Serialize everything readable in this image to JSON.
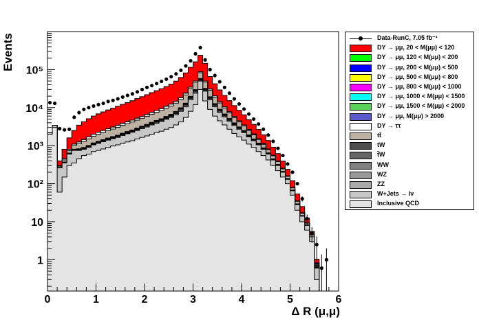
{
  "chart_data": {
    "type": "histogram",
    "xlabel": "Δ R (μ,μ)",
    "ylabel": "Events",
    "xlim": [
      0,
      6
    ],
    "ylim": [
      0.15,
      1000000
    ],
    "yscale": "log",
    "x_ticks": [
      "0",
      "1",
      "2",
      "3",
      "4",
      "5",
      "6"
    ],
    "y_ticks": [
      "1",
      "10",
      "10²",
      "10³",
      "10⁴",
      "10⁵"
    ],
    "legend_position": "right",
    "bin_width": 0.1,
    "bin_centers": [
      0.05,
      0.15,
      0.25,
      0.35,
      0.45,
      0.55,
      0.65,
      0.75,
      0.85,
      0.95,
      1.05,
      1.15,
      1.25,
      1.35,
      1.45,
      1.55,
      1.65,
      1.75,
      1.85,
      1.95,
      2.05,
      2.15,
      2.25,
      2.35,
      2.45,
      2.55,
      2.65,
      2.75,
      2.85,
      2.95,
      3.05,
      3.15,
      3.25,
      3.35,
      3.45,
      3.55,
      3.65,
      3.75,
      3.85,
      3.95,
      4.05,
      4.15,
      4.25,
      4.35,
      4.45,
      4.55,
      4.65,
      4.75,
      4.85,
      4.95,
      5.05,
      5.15,
      5.25,
      5.35,
      5.45,
      5.55,
      5.65,
      5.75
    ],
    "series": [
      {
        "name": "Inclusive QCD",
        "color": "#e4e4e4",
        "values": [
          2000,
          3000,
          60,
          150,
          300,
          350,
          450,
          550,
          600,
          700,
          750,
          820,
          900,
          980,
          1050,
          1150,
          1250,
          1350,
          1500,
          1650,
          1800,
          2000,
          2200,
          2400,
          2700,
          3000,
          3500,
          4200,
          5500,
          8000,
          12000,
          30000,
          15000,
          9000,
          6000,
          4500,
          3500,
          2700,
          2100,
          1700,
          1400,
          1100,
          900,
          700,
          550,
          420,
          300,
          220,
          150,
          100,
          50,
          20,
          10,
          6,
          3,
          0.3,
          0,
          0
        ]
      },
      {
        "name": "W+Jets → lν",
        "color": "#c8c8c8",
        "values": [
          200,
          400,
          200,
          200,
          300,
          400,
          300,
          250,
          300,
          350,
          400,
          450,
          500,
          550,
          600,
          700,
          800,
          900,
          1000,
          1150,
          1300,
          1500,
          1700,
          1900,
          2200,
          2500,
          3000,
          3800,
          5000,
          8000,
          12000,
          20000,
          12000,
          7000,
          4500,
          3000,
          2200,
          1700,
          1300,
          1000,
          800,
          600,
          450,
          350,
          250,
          180,
          120,
          80,
          50,
          30,
          15,
          8,
          4,
          2,
          1,
          0.3,
          0,
          0
        ]
      },
      {
        "name": "ZZ",
        "color": "#aaaaaa",
        "values": [
          0,
          0,
          3,
          8,
          15,
          20,
          25,
          30,
          35,
          40,
          45,
          50,
          55,
          60,
          70,
          80,
          90,
          100,
          120,
          140,
          160,
          180,
          210,
          250,
          300,
          350,
          450,
          600,
          800,
          1200,
          1800,
          2500,
          1600,
          1000,
          700,
          500,
          350,
          250,
          180,
          130,
          100,
          70,
          50,
          35,
          25,
          15,
          10,
          6,
          3,
          2,
          1,
          0.5,
          0.2,
          0.1,
          0,
          0,
          0,
          0
        ]
      },
      {
        "name": "WZ",
        "color": "#999999",
        "values": [
          0,
          0,
          2,
          5,
          10,
          15,
          20,
          25,
          30,
          35,
          40,
          45,
          50,
          55,
          60,
          70,
          80,
          90,
          100,
          120,
          140,
          160,
          180,
          210,
          250,
          300,
          380,
          500,
          700,
          1000,
          1500,
          2200,
          1400,
          900,
          600,
          420,
          300,
          210,
          150,
          110,
          80,
          60,
          40,
          30,
          20,
          12,
          8,
          5,
          3,
          2,
          1,
          0.5,
          0.2,
          0.1,
          0,
          0,
          0,
          0
        ]
      },
      {
        "name": "WW",
        "color": "#808080",
        "values": [
          0,
          0,
          1,
          3,
          6,
          10,
          14,
          18,
          22,
          26,
          30,
          34,
          38,
          42,
          48,
          55,
          62,
          70,
          80,
          95,
          110,
          125,
          145,
          170,
          200,
          240,
          300,
          400,
          550,
          800,
          1200,
          1800,
          1100,
          700,
          450,
          320,
          230,
          160,
          120,
          90,
          65,
          45,
          32,
          22,
          15,
          9,
          6,
          4,
          2,
          1,
          0.5,
          0.2,
          0.1,
          0,
          0,
          0,
          0,
          0
        ]
      },
      {
        "name": "t̄W",
        "color": "#666666",
        "values": [
          0,
          0,
          1,
          2,
          4,
          6,
          8,
          10,
          12,
          14,
          16,
          18,
          20,
          23,
          26,
          30,
          34,
          38,
          43,
          50,
          58,
          66,
          76,
          88,
          104,
          124,
          152,
          200,
          270,
          390,
          580,
          850,
          520,
          330,
          220,
          150,
          110,
          80,
          58,
          42,
          30,
          22,
          15,
          10,
          7,
          4,
          3,
          2,
          1,
          0.5,
          0.2,
          0.1,
          0,
          0,
          0,
          0,
          0,
          0
        ]
      },
      {
        "name": "tW",
        "color": "#4d4d4d",
        "values": [
          0,
          0,
          1,
          2,
          4,
          6,
          8,
          10,
          12,
          14,
          16,
          18,
          20,
          23,
          26,
          30,
          34,
          38,
          43,
          50,
          58,
          66,
          76,
          88,
          104,
          124,
          152,
          200,
          270,
          390,
          580,
          850,
          520,
          330,
          220,
          150,
          110,
          80,
          58,
          42,
          30,
          22,
          15,
          10,
          7,
          4,
          3,
          2,
          1,
          0.5,
          0.2,
          0.1,
          0,
          0,
          0,
          0,
          0,
          0
        ]
      },
      {
        "name": "tt̄",
        "color": "#bcb1a3",
        "values": [
          0,
          0,
          20,
          50,
          100,
          200,
          300,
          400,
          500,
          600,
          700,
          800,
          900,
          1000,
          1150,
          1300,
          1450,
          1600,
          1800,
          2000,
          2300,
          2600,
          2900,
          3300,
          3800,
          4400,
          5200,
          6500,
          8500,
          12000,
          17000,
          25000,
          15000,
          9500,
          6200,
          4200,
          3000,
          2100,
          1500,
          1100,
          800,
          580,
          420,
          300,
          210,
          140,
          90,
          60,
          35,
          20,
          10,
          5,
          2,
          1,
          0.5,
          0,
          0,
          0
        ]
      },
      {
        "name": "DY → ττ",
        "color": "#ffffff",
        "values": [
          0,
          0,
          10,
          30,
          60,
          90,
          120,
          150,
          180,
          210,
          240,
          270,
          300,
          330,
          370,
          410,
          450,
          500,
          560,
          630,
          700,
          790,
          890,
          1000,
          1150,
          1300,
          1500,
          1800,
          2200,
          2800,
          3500,
          4500,
          3000,
          2000,
          1400,
          1000,
          700,
          500,
          350,
          250,
          180,
          130,
          90,
          60,
          40,
          25,
          15,
          10,
          6,
          3,
          2,
          1,
          0.5,
          0.2,
          0,
          0,
          0,
          0
        ]
      },
      {
        "name": "DY → μμ, M(μμ) > 2000",
        "color": "#5a5ac8",
        "values": [
          0,
          0,
          0,
          0,
          0,
          0,
          0,
          0,
          0,
          0,
          0,
          0,
          0,
          0,
          0,
          0,
          0,
          0,
          0,
          0,
          0,
          0,
          0,
          0,
          0,
          0,
          0,
          0,
          0,
          0,
          0,
          0,
          0,
          0,
          0,
          0,
          0,
          0,
          0,
          0,
          0,
          0,
          0,
          0,
          0,
          0,
          0,
          0,
          0,
          0,
          0,
          0,
          0,
          0,
          0,
          0.03,
          0,
          0
        ]
      },
      {
        "name": "DY → μμ, 1500 < M(μμ) < 2000",
        "color": "#5ad25a",
        "values": [
          0,
          0,
          0,
          0,
          0,
          0,
          0,
          0,
          0,
          0,
          0,
          0,
          0,
          0,
          0,
          0,
          0,
          0,
          0,
          0,
          0,
          0,
          0,
          0,
          0,
          0,
          0,
          0,
          0,
          0,
          0,
          0,
          0,
          0,
          0,
          0,
          0,
          0,
          0,
          0,
          0,
          0,
          0,
          0,
          0,
          0,
          0,
          0,
          0,
          0,
          0,
          0,
          0,
          0,
          0,
          0.03,
          0,
          0
        ]
      },
      {
        "name": "DY → μμ, 1000 < M(μμ) < 1500",
        "color": "#00ffff",
        "values": [
          0,
          0,
          0,
          0,
          0,
          0,
          0,
          0,
          0,
          0,
          0,
          0,
          0,
          0,
          0,
          0,
          0,
          0,
          0,
          0,
          0,
          0,
          0,
          0,
          0,
          0,
          0,
          0,
          0,
          0,
          0,
          0,
          0,
          0,
          0,
          0,
          0,
          0,
          0,
          0,
          0,
          0,
          0,
          0,
          0,
          0,
          0,
          0,
          0,
          0,
          0,
          0,
          0,
          0,
          0,
          0.03,
          0,
          0
        ]
      },
      {
        "name": "DY → μμ, 800 < M(μμ) < 1000",
        "color": "#ff00ff",
        "values": [
          0,
          0,
          0,
          0,
          0,
          0,
          0,
          0,
          0,
          0,
          0,
          0,
          0,
          0,
          0,
          0,
          0,
          0,
          0,
          0,
          0,
          0,
          0,
          0,
          0,
          0,
          0,
          0,
          0,
          0,
          0,
          0,
          0,
          0,
          0,
          0,
          0,
          0,
          0,
          0,
          0,
          0,
          0,
          0,
          0,
          0,
          0,
          0,
          0,
          0,
          0,
          0,
          0,
          0,
          0,
          0.03,
          0,
          0
        ]
      },
      {
        "name": "DY → μμ, 500 < M(μμ) < 800",
        "color": "#ffff00",
        "values": [
          0,
          0,
          0,
          0,
          0,
          0,
          0,
          0,
          0,
          0,
          0,
          0,
          0,
          0,
          0,
          0,
          0,
          0,
          0,
          0,
          0,
          0,
          0,
          0,
          0,
          0,
          0,
          0,
          0,
          0,
          0,
          0,
          0,
          0,
          0,
          0,
          0,
          0,
          0,
          0,
          0,
          0,
          0,
          0,
          0,
          0,
          0,
          0,
          0,
          0,
          0,
          0,
          0,
          0,
          0,
          0.04,
          0,
          0
        ]
      },
      {
        "name": "DY → μμ, 200 < M(μμ) < 500",
        "color": "#0000ff",
        "values": [
          0,
          0,
          0,
          0,
          0,
          0,
          0,
          0,
          0,
          0,
          0,
          0,
          0,
          0,
          0,
          0,
          0,
          0,
          0,
          0,
          0,
          0,
          0,
          0,
          0,
          0,
          0,
          0,
          0,
          0,
          0,
          0,
          0,
          0,
          0,
          0,
          0,
          0,
          0,
          0,
          0,
          0,
          0,
          0,
          0,
          0,
          0,
          0,
          0,
          0,
          0,
          0,
          0,
          0,
          0,
          0.05,
          0,
          0
        ]
      },
      {
        "name": "DY → μμ, 120 < M(μμ) < 200",
        "color": "#00ff00",
        "values": [
          0,
          0,
          0,
          0,
          0,
          0,
          0,
          0,
          0,
          0,
          0,
          0,
          0,
          0,
          0,
          0,
          0,
          0,
          0,
          0,
          0,
          0,
          0,
          0,
          0,
          0,
          0,
          0,
          0,
          0,
          0,
          0,
          0,
          0,
          0,
          0,
          0,
          0,
          0,
          0,
          0,
          0,
          0,
          0,
          0,
          0,
          0,
          0,
          0,
          0,
          0,
          0,
          0,
          0,
          0,
          0.02,
          0,
          0
        ]
      },
      {
        "name": "DY → μμ, 20 < M(μμ) < 120",
        "color": "#ff0000",
        "values": [
          0,
          0,
          100,
          350,
          800,
          1400,
          2200,
          2800,
          3400,
          4000,
          4600,
          5200,
          5900,
          6600,
          7400,
          8300,
          9300,
          10500,
          12000,
          13500,
          15200,
          17200,
          19500,
          22000,
          25000,
          29000,
          35000,
          44000,
          58000,
          80000,
          110000,
          150000,
          95000,
          35000,
          22000,
          15000,
          10500,
          7500,
          5500,
          4000,
          3000,
          2200,
          1600,
          1150,
          800,
          550,
          360,
          230,
          140,
          80,
          40,
          18,
          8,
          3,
          1,
          0.2,
          0,
          0
        ]
      }
    ],
    "data": {
      "name": "Data-RunC, 7.05 fb⁻¹",
      "values": [
        13500,
        13000,
        2800,
        2600,
        2700,
        5600,
        7400,
        9000,
        10000,
        11000,
        12000,
        13000,
        14500,
        15500,
        17000,
        19000,
        21000,
        23000,
        26000,
        30000,
        34000,
        38000,
        43000,
        49000,
        56000,
        65000,
        77000,
        96000,
        125000,
        170000,
        260000,
        380000,
        180000,
        100000,
        70000,
        48000,
        34000,
        24000,
        17000,
        12500,
        9200,
        6800,
        5000,
        3700,
        2700,
        1900,
        1300,
        850,
        550,
        330,
        200,
        100,
        40,
        12,
        5,
        2.5,
        0.6,
        1
      ],
      "stat_error": "sqrt(N)"
    }
  },
  "legend": {
    "items": [
      {
        "label": "Data-RunC, 7.05 fb⁻¹",
        "color": "#000000",
        "kind": "marker"
      },
      {
        "label": "DY → μμ, 20 < M(μμ) <  120",
        "color": "#ff0000",
        "kind": "fill"
      },
      {
        "label": "DY → μμ, 120 < M(μμ) <  200",
        "color": "#00ff00",
        "kind": "fill"
      },
      {
        "label": "DY → μμ, 200 < M(μμ) <  500",
        "color": "#0000ff",
        "kind": "fill"
      },
      {
        "label": "DY → μμ, 500 < M(μμ) <  800",
        "color": "#ffff00",
        "kind": "fill"
      },
      {
        "label": "DY → μμ, 800 < M(μμ) < 1000",
        "color": "#ff00ff",
        "kind": "fill"
      },
      {
        "label": "DY → μμ, 1000 < M(μμ) < 1500",
        "color": "#00ffff",
        "kind": "fill"
      },
      {
        "label": "DY → μμ, 1500 < M(μμ) < 2000",
        "color": "#5ad25a",
        "kind": "fill"
      },
      {
        "label": "DY → μμ, M(μμ) > 2000",
        "color": "#5a5ac8",
        "kind": "fill"
      },
      {
        "label": "DY → ττ",
        "color": "#ffffff",
        "kind": "fill"
      },
      {
        "label": "tt̄",
        "color": "#bcb1a3",
        "kind": "fill"
      },
      {
        "label": "tW",
        "color": "#4d4d4d",
        "kind": "fill"
      },
      {
        "label": "t̄W",
        "color": "#666666",
        "kind": "fill"
      },
      {
        "label": "WW",
        "color": "#808080",
        "kind": "fill"
      },
      {
        "label": "WZ",
        "color": "#999999",
        "kind": "fill"
      },
      {
        "label": "ZZ",
        "color": "#aaaaaa",
        "kind": "fill"
      },
      {
        "label": "W+Jets → lν",
        "color": "#c8c8c8",
        "kind": "fill"
      },
      {
        "label": "Inclusive QCD",
        "color": "#e4e4e4",
        "kind": "fill"
      }
    ]
  }
}
